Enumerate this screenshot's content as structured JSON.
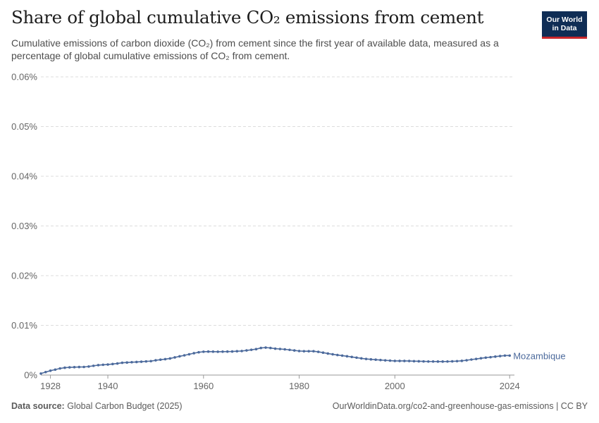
{
  "header": {
    "title": "Share of global cumulative CO₂ emissions from cement",
    "subtitle": "Cumulative emissions of carbon dioxide (CO₂) from cement since the first year of available data, measured as a percentage of global cumulative emissions of CO₂ from cement."
  },
  "logo": {
    "line1": "Our World",
    "line2": "in Data"
  },
  "footer": {
    "source_label": "Data source:",
    "source_value": "Global Carbon Budget (2025)",
    "url": "OurWorldinData.org/co2-and-greenhouse-gas-emissions | CC BY"
  },
  "chart_data": {
    "type": "line",
    "title": "Share of global cumulative CO₂ emissions from cement",
    "xlabel": "",
    "ylabel": "",
    "xlim": [
      1926,
      2025
    ],
    "ylim": [
      0,
      0.06
    ],
    "x_ticks": [
      1928,
      1940,
      1960,
      1980,
      2000,
      2024
    ],
    "y_ticks": [
      0,
      0.01,
      0.02,
      0.03,
      0.04,
      0.05,
      0.06
    ],
    "y_tick_labels": [
      "0%",
      "0.01%",
      "0.02%",
      "0.03%",
      "0.04%",
      "0.05%",
      "0.06%"
    ],
    "grid": true,
    "series_color": "#4c6a9c",
    "series": [
      {
        "name": "Mozambique",
        "x": [
          1926,
          1927,
          1928,
          1929,
          1930,
          1931,
          1932,
          1933,
          1934,
          1935,
          1936,
          1937,
          1938,
          1939,
          1940,
          1941,
          1942,
          1943,
          1944,
          1945,
          1946,
          1947,
          1948,
          1949,
          1950,
          1951,
          1952,
          1953,
          1954,
          1955,
          1956,
          1957,
          1958,
          1959,
          1960,
          1961,
          1962,
          1963,
          1964,
          1965,
          1966,
          1967,
          1968,
          1969,
          1970,
          1971,
          1972,
          1973,
          1974,
          1975,
          1976,
          1977,
          1978,
          1979,
          1980,
          1981,
          1982,
          1983,
          1984,
          1985,
          1986,
          1987,
          1988,
          1989,
          1990,
          1991,
          1992,
          1993,
          1994,
          1995,
          1996,
          1997,
          1998,
          1999,
          2000,
          2001,
          2002,
          2003,
          2004,
          2005,
          2006,
          2007,
          2008,
          2009,
          2010,
          2011,
          2012,
          2013,
          2014,
          2015,
          2016,
          2017,
          2018,
          2019,
          2020,
          2021,
          2022,
          2023,
          2024
        ],
        "values": [
          0.0003,
          0.0006,
          0.00088,
          0.0011,
          0.00133,
          0.00148,
          0.00155,
          0.00159,
          0.00162,
          0.00163,
          0.00172,
          0.00186,
          0.002,
          0.00207,
          0.00212,
          0.00222,
          0.00233,
          0.00247,
          0.00252,
          0.00258,
          0.00263,
          0.00268,
          0.00275,
          0.0028,
          0.00297,
          0.00309,
          0.0032,
          0.00334,
          0.00355,
          0.00377,
          0.00397,
          0.00418,
          0.0044,
          0.00458,
          0.0047,
          0.00472,
          0.00471,
          0.00469,
          0.00471,
          0.00472,
          0.00474,
          0.00479,
          0.00484,
          0.00496,
          0.00508,
          0.00522,
          0.00545,
          0.00553,
          0.00545,
          0.00531,
          0.00525,
          0.00517,
          0.00507,
          0.00495,
          0.00484,
          0.0048,
          0.00479,
          0.00479,
          0.00467,
          0.00451,
          0.00433,
          0.00418,
          0.00403,
          0.00391,
          0.00378,
          0.00364,
          0.0035,
          0.00336,
          0.00324,
          0.00316,
          0.00309,
          0.00303,
          0.00296,
          0.0029,
          0.00285,
          0.00284,
          0.00284,
          0.00283,
          0.00279,
          0.00277,
          0.00275,
          0.00273,
          0.00273,
          0.00272,
          0.00272,
          0.00273,
          0.00276,
          0.0028,
          0.00286,
          0.00298,
          0.00312,
          0.00324,
          0.00338,
          0.0035,
          0.0036,
          0.00371,
          0.00382,
          0.00392,
          0.00392
        ]
      }
    ]
  }
}
